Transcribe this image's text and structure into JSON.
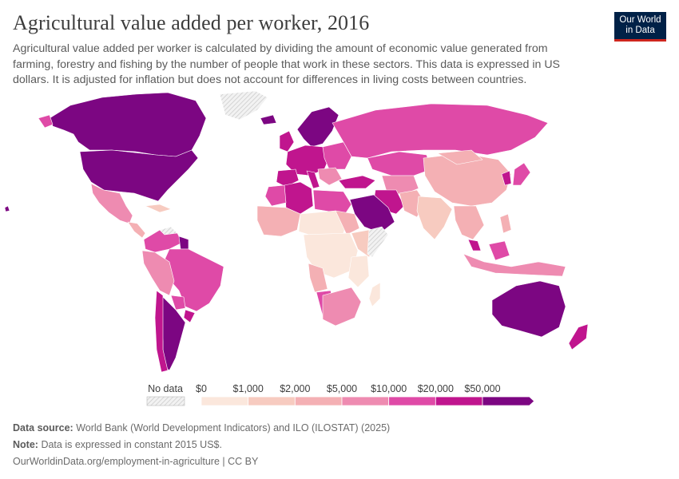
{
  "header": {
    "title": "Agricultural value added per worker, 2016",
    "subtitle": "Agricultural value added per worker is calculated by dividing the amount of economic value generated from farming, forestry and fishing by the number of people that work in these sectors. This data is expressed in US dollars. It is adjusted for inflation but does not account for differences in living costs between countries.",
    "logo_line1": "Our World",
    "logo_line2": "in Data"
  },
  "legend": {
    "no_data_label": "No data",
    "ticks": [
      "$0",
      "$1,000",
      "$2,000",
      "$5,000",
      "$10,000",
      "$20,000",
      "$50,000"
    ],
    "colors": [
      "#fbe7dc",
      "#f7cbc0",
      "#f4b0b4",
      "#ee8bb1",
      "#df4aa7",
      "#c0158e",
      "#7c0682"
    ]
  },
  "footer": {
    "source_label": "Data source:",
    "source_text": "World Bank (World Development Indicators) and ILO (ILOSTAT) (2025)",
    "note_label": "Note:",
    "note_text": "Data is expressed in constant 2015 US$.",
    "url_text": "OurWorldinData.org/employment-in-agriculture | CC BY"
  }
}
